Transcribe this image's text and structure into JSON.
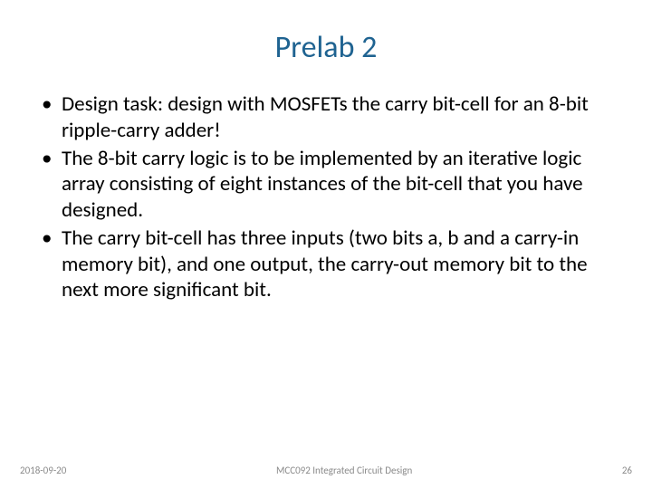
{
  "title": {
    "text": "Prelab 2",
    "color": "#1f6391",
    "fontsize": 34
  },
  "bullets": [
    "Design task: design with MOSFETs the carry bit-cell for an 8-bit ripple-carry adder!",
    "The 8-bit carry logic is to be implemented by an iterative logic array consisting of eight instances of the bit-cell that you have designed.",
    "The carry bit-cell has three inputs (two bits a, b and a carry-in memory bit), and one output, the carry-out memory bit to the next more significant bit."
  ],
  "body": {
    "color": "#000000",
    "fontsize": 23
  },
  "footer": {
    "date": "2018-09-20",
    "course": "MCC092 Integrated Circuit Design",
    "page": "26",
    "color": "#8a8a8a",
    "fontsize": 11
  },
  "background_color": "#ffffff"
}
